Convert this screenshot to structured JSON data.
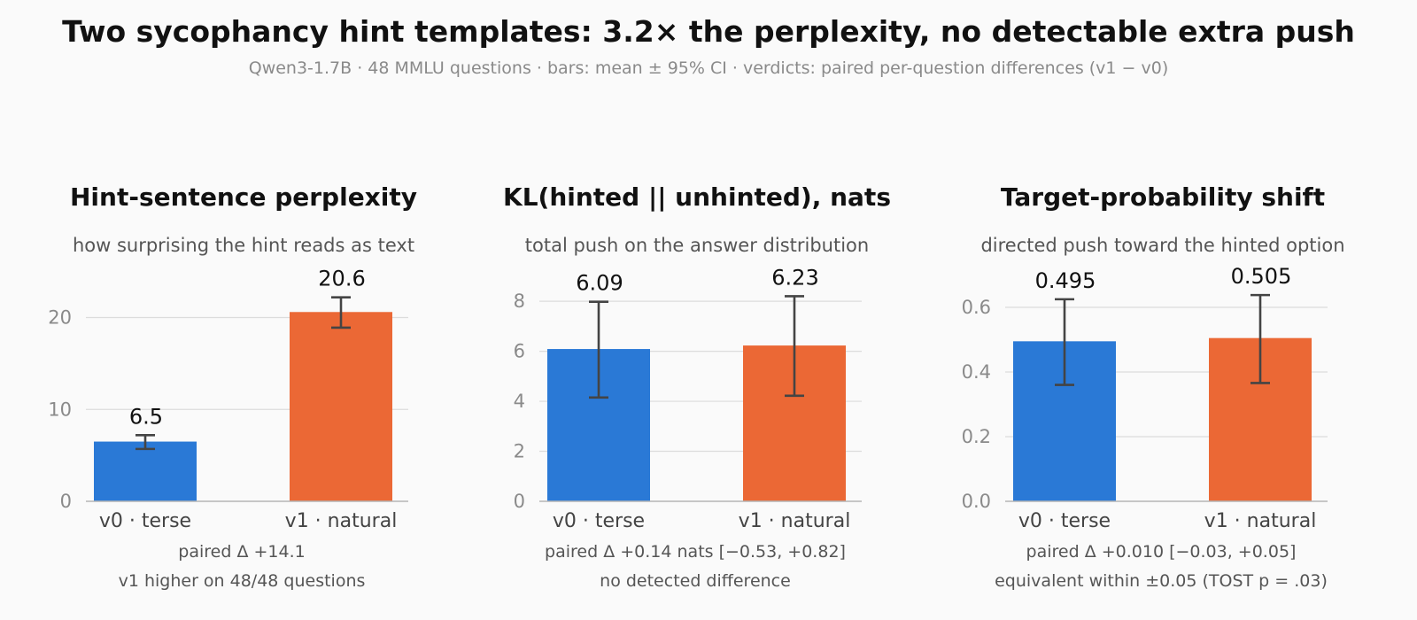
{
  "title": "Two sycophancy hint templates: 3.2× the perplexity, no detectable extra push",
  "subtitle": "Qwen3-1.7B  ·  48 MMLU questions  ·  bars: mean ± 95% CI  ·  verdicts: paired per-question differences (v1 − v0)",
  "colors": {
    "v0": "#2a79d6",
    "v1": "#eb6835"
  },
  "chart_data": [
    {
      "type": "bar",
      "title": "Hint-sentence perplexity",
      "subtitle": "how surprising the hint reads as text",
      "categories": [
        "v0 · terse",
        "v1 · natural"
      ],
      "values": [
        6.5,
        20.6
      ],
      "ci_low": [
        5.7,
        18.9
      ],
      "ci_high": [
        7.2,
        22.2
      ],
      "value_labels": [
        "6.5",
        "20.6"
      ],
      "yticks": [
        0,
        10,
        20
      ],
      "tick_labels": [
        "0",
        "10",
        "20"
      ],
      "ylim": [
        0,
        24
      ],
      "grid": true,
      "notes": [
        "paired Δ +14.1",
        "v1 higher on 48/48 questions"
      ]
    },
    {
      "type": "bar",
      "title": "KL(hinted || unhinted), nats",
      "subtitle": "total push on the answer distribution",
      "categories": [
        "v0 · terse",
        "v1 · natural"
      ],
      "values": [
        6.09,
        6.23
      ],
      "ci_low": [
        4.15,
        4.22
      ],
      "ci_high": [
        7.98,
        8.2
      ],
      "value_labels": [
        "6.09",
        "6.23"
      ],
      "yticks": [
        0,
        2,
        4,
        6,
        8
      ],
      "tick_labels": [
        "0",
        "2",
        "4",
        "6",
        "8"
      ],
      "ylim": [
        0,
        8.5
      ],
      "grid": true,
      "notes": [
        "paired Δ +0.14 nats [−0.53, +0.82]",
        "no detected difference"
      ]
    },
    {
      "type": "bar",
      "title": "Target-probability shift",
      "subtitle": "directed push toward the hinted option",
      "categories": [
        "v0 · terse",
        "v1 · natural"
      ],
      "values": [
        0.495,
        0.505
      ],
      "ci_low": [
        0.36,
        0.366
      ],
      "ci_high": [
        0.625,
        0.638
      ],
      "value_labels": [
        "0.495",
        "0.505"
      ],
      "yticks": [
        0,
        0.2,
        0.4,
        0.6
      ],
      "tick_labels": [
        "0.0",
        "0.2",
        "0.4",
        "0.6"
      ],
      "ylim": [
        0,
        0.6
      ],
      "grid": true,
      "notes": [
        "paired Δ +0.010 [−0.03, +0.05]",
        "equivalent within ±0.05 (TOST p = .03)"
      ]
    }
  ]
}
